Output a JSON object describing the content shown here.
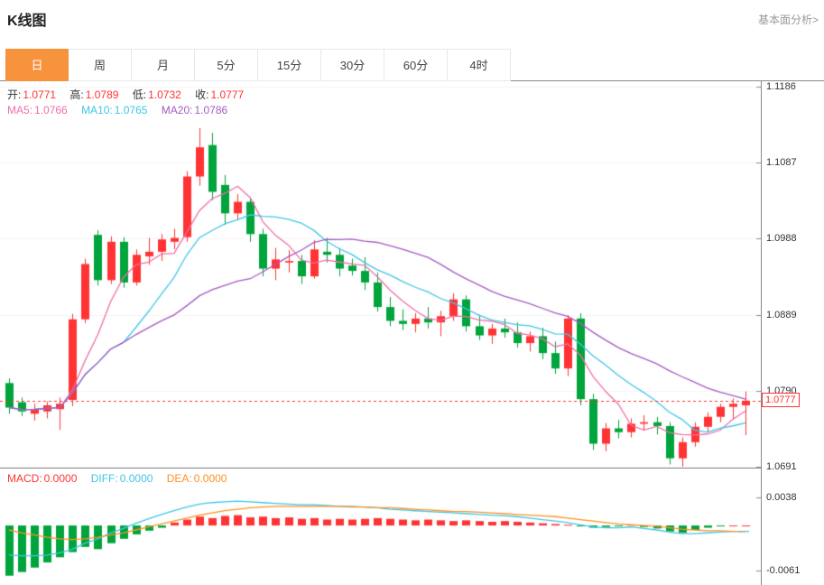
{
  "header": {
    "title": "K线图",
    "link_label": "基本面分析>"
  },
  "tabs": {
    "active_index": 0,
    "items": [
      {
        "label": "日"
      },
      {
        "label": "周"
      },
      {
        "label": "月"
      },
      {
        "label": "5分"
      },
      {
        "label": "15分"
      },
      {
        "label": "30分"
      },
      {
        "label": "60分"
      },
      {
        "label": "4时"
      }
    ]
  },
  "main_legend": {
    "ohlc": [
      {
        "label": "开:",
        "value": "1.0771"
      },
      {
        "label": "高:",
        "value": "1.0789"
      },
      {
        "label": "低:",
        "value": "1.0732"
      },
      {
        "label": "收:",
        "value": "1.0777"
      }
    ],
    "ma": [
      {
        "label": "MA5:",
        "value": "1.0766",
        "color": "#f06eaa"
      },
      {
        "label": "MA10:",
        "value": "1.0765",
        "color": "#3fc6e8"
      },
      {
        "label": "MA20:",
        "value": "1.0786",
        "color": "#a55bc1"
      }
    ]
  },
  "macd_legend": {
    "items": [
      {
        "label": "MACD:",
        "value": "0.0000",
        "color": "#ff3333"
      },
      {
        "label": "DIFF:",
        "value": "0.0000",
        "color": "#3fc6e8"
      },
      {
        "label": "DEA:",
        "value": "0.0000",
        "color": "#ff9022"
      }
    ]
  },
  "colors": {
    "up": "#ff3333",
    "down": "#00a43c",
    "ma5": "#f06eaa",
    "ma10": "#3fc6e8",
    "ma20": "#a55bc1",
    "diff": "#3fc6e8",
    "dea": "#ff9022",
    "price_line": "#ff3333",
    "axis": "#8a8a8a",
    "grid": "#f5f5f5"
  },
  "chart_data": {
    "type": "candlestick",
    "title": "K线图",
    "period": "日",
    "current_price": 1.0777,
    "current_price_label": "1.0777",
    "y_axis": {
      "max": 1.1186,
      "min": 1.0691,
      "labels": [
        "1.1186",
        "1.1087",
        "1.0988",
        "1.0889",
        "1.0790",
        "1.0691"
      ]
    },
    "ma_periods": [
      5,
      10,
      20
    ],
    "candles": [
      [
        1.08,
        1.0806,
        1.076,
        1.0768
      ],
      [
        1.0775,
        1.0781,
        1.0757,
        1.0763
      ],
      [
        1.076,
        1.0773,
        1.0751,
        1.0766
      ],
      [
        1.0763,
        1.0776,
        1.0754,
        1.0771
      ],
      [
        1.0766,
        1.0781,
        1.0739,
        1.0773
      ],
      [
        1.0778,
        1.089,
        1.077,
        1.0883
      ],
      [
        1.0883,
        1.0962,
        1.0878,
        1.0955
      ],
      [
        1.0993,
        1.0999,
        1.0927,
        1.0934
      ],
      [
        1.0934,
        1.0991,
        1.0929,
        1.0984
      ],
      [
        1.0984,
        1.099,
        1.0924,
        1.0931
      ],
      [
        1.0931,
        1.0974,
        1.0927,
        1.0967
      ],
      [
        1.0965,
        1.0989,
        1.0954,
        1.0971
      ],
      [
        1.0971,
        1.0994,
        1.0959,
        1.0987
      ],
      [
        1.0984,
        1.1001,
        1.0974,
        1.0989
      ],
      [
        1.099,
        1.1076,
        1.0984,
        1.1069
      ],
      [
        1.1069,
        1.1132,
        1.1057,
        1.1107
      ],
      [
        1.111,
        1.1126,
        1.1038,
        1.1049
      ],
      [
        1.1058,
        1.1071,
        1.1006,
        1.1021
      ],
      [
        1.1021,
        1.1046,
        1.1013,
        1.1036
      ],
      [
        1.1036,
        1.1041,
        1.0984,
        1.0994
      ],
      [
        1.0994,
        1.1001,
        1.0939,
        1.0949
      ],
      [
        1.0949,
        1.0976,
        1.0934,
        1.0961
      ],
      [
        1.0957,
        1.0973,
        1.0944,
        1.0959
      ],
      [
        1.0959,
        1.0967,
        1.0929,
        1.0939
      ],
      [
        1.0939,
        1.0986,
        1.0936,
        1.0974
      ],
      [
        1.0971,
        1.0989,
        1.0957,
        1.0967
      ],
      [
        1.0967,
        1.0976,
        1.0939,
        1.0949
      ],
      [
        1.0953,
        1.0962,
        1.094,
        1.0946
      ],
      [
        1.0946,
        1.0964,
        1.0921,
        1.0931
      ],
      [
        1.0931,
        1.0944,
        1.0893,
        1.0899
      ],
      [
        1.0899,
        1.0912,
        1.0874,
        1.0881
      ],
      [
        1.0881,
        1.0896,
        1.0869,
        1.0877
      ],
      [
        1.0877,
        1.0891,
        1.0866,
        1.0884
      ],
      [
        1.0884,
        1.0899,
        1.0871,
        1.0879
      ],
      [
        1.0879,
        1.0894,
        1.0861,
        1.0887
      ],
      [
        1.0887,
        1.0917,
        1.0881,
        1.0909
      ],
      [
        1.0909,
        1.0914,
        1.0867,
        1.0874
      ],
      [
        1.0874,
        1.0889,
        1.0856,
        1.0862
      ],
      [
        1.0862,
        1.0877,
        1.0851,
        1.0871
      ],
      [
        1.0871,
        1.0884,
        1.0859,
        1.0866
      ],
      [
        1.0866,
        1.0879,
        1.0846,
        1.0852
      ],
      [
        1.0852,
        1.0867,
        1.0841,
        1.0861
      ],
      [
        1.0861,
        1.0872,
        1.0831,
        1.0839
      ],
      [
        1.0839,
        1.0854,
        1.0812,
        1.0819
      ],
      [
        1.0819,
        1.0888,
        1.0809,
        1.0884
      ],
      [
        1.0884,
        1.0891,
        1.0771,
        1.0779
      ],
      [
        1.0779,
        1.0786,
        1.0713,
        1.0721
      ],
      [
        1.0721,
        1.0748,
        1.0711,
        1.0741
      ],
      [
        1.0741,
        1.0752,
        1.0728,
        1.0736
      ],
      [
        1.0736,
        1.0754,
        1.0729,
        1.0747
      ],
      [
        1.0747,
        1.0758,
        1.0738,
        1.0749
      ],
      [
        1.0749,
        1.0756,
        1.0733,
        1.0744
      ],
      [
        1.0744,
        1.0749,
        1.0694,
        1.0702
      ],
      [
        1.0702,
        1.0729,
        1.0691,
        1.0723
      ],
      [
        1.0723,
        1.0749,
        1.0717,
        1.0743
      ],
      [
        1.0743,
        1.0762,
        1.0736,
        1.0756
      ],
      [
        1.0756,
        1.0773,
        1.0749,
        1.0769
      ],
      [
        1.0769,
        1.078,
        1.0753,
        1.0773
      ],
      [
        1.0771,
        1.0789,
        1.0732,
        1.0777
      ]
    ],
    "macd": {
      "axis_max": 0.0038,
      "axis_min": -0.0061,
      "labels": [
        "0.0038",
        "-0.0061"
      ],
      "diff": [
        -0.004,
        -0.0041,
        -0.0041,
        -0.004,
        -0.0037,
        -0.0032,
        -0.0024,
        -0.0018,
        -0.001,
        -0.0004,
        0.0003,
        0.0009,
        0.0015,
        0.002,
        0.0025,
        0.0029,
        0.0031,
        0.0032,
        0.0033,
        0.0032,
        0.0031,
        0.003,
        0.0029,
        0.0028,
        0.0028,
        0.0027,
        0.0026,
        0.0026,
        0.0025,
        0.0024,
        0.0022,
        0.0021,
        0.002,
        0.0019,
        0.0018,
        0.0017,
        0.0016,
        0.0015,
        0.0014,
        0.0013,
        0.0012,
        0.001,
        0.0008,
        0.0006,
        0.0004,
        0.0001,
        -0.0002,
        -0.0003,
        -0.0003,
        -0.0002,
        -0.0004,
        -0.0006,
        -0.0009,
        -0.0011,
        -0.0011,
        -0.001,
        -0.0009,
        -0.0008,
        -0.0008
      ],
      "dea": [
        -0.0006,
        -0.001,
        -0.0013,
        -0.0016,
        -0.0018,
        -0.0019,
        -0.0018,
        -0.0016,
        -0.0013,
        -0.001,
        -0.0006,
        -0.0002,
        0.0002,
        0.0006,
        0.001,
        0.0014,
        0.0017,
        0.002,
        0.0022,
        0.0024,
        0.0025,
        0.0026,
        0.0026,
        0.0026,
        0.0026,
        0.0026,
        0.0026,
        0.0025,
        0.0025,
        0.0024,
        0.0024,
        0.0023,
        0.0022,
        0.0021,
        0.002,
        0.0019,
        0.0019,
        0.0018,
        0.0017,
        0.0016,
        0.0015,
        0.0014,
        0.0013,
        0.0012,
        0.001,
        0.0008,
        0.0006,
        0.0004,
        0.0002,
        0.0001,
        0.0,
        -0.0001,
        -0.0003,
        -0.0005,
        -0.0006,
        -0.0007,
        -0.0007,
        -0.0008,
        -0.0008
      ],
      "hist": [
        -0.0068,
        -0.0063,
        -0.0057,
        -0.005,
        -0.0043,
        -0.0036,
        -0.0029,
        -0.0032,
        -0.0024,
        -0.0018,
        -0.0012,
        -0.0007,
        -0.0003,
        0.0004,
        0.0008,
        0.0012,
        0.001,
        0.0013,
        0.0014,
        0.0011,
        0.0012,
        0.001,
        0.0011,
        0.0009,
        0.001,
        0.0008,
        0.0009,
        0.0008,
        0.0009,
        0.001,
        0.0009,
        0.0008,
        0.0007,
        0.0008,
        0.0007,
        0.0006,
        0.0007,
        0.0006,
        0.0005,
        0.0006,
        0.0005,
        0.0004,
        0.0003,
        0.0002,
        0.0001,
        -0.0001,
        -0.0003,
        -0.0002,
        -0.0001,
        0.0001,
        -0.0002,
        -0.0004,
        -0.0008,
        -0.001,
        -0.0006,
        -0.0003,
        -0.0001,
        0.0,
        0.0
      ]
    }
  }
}
